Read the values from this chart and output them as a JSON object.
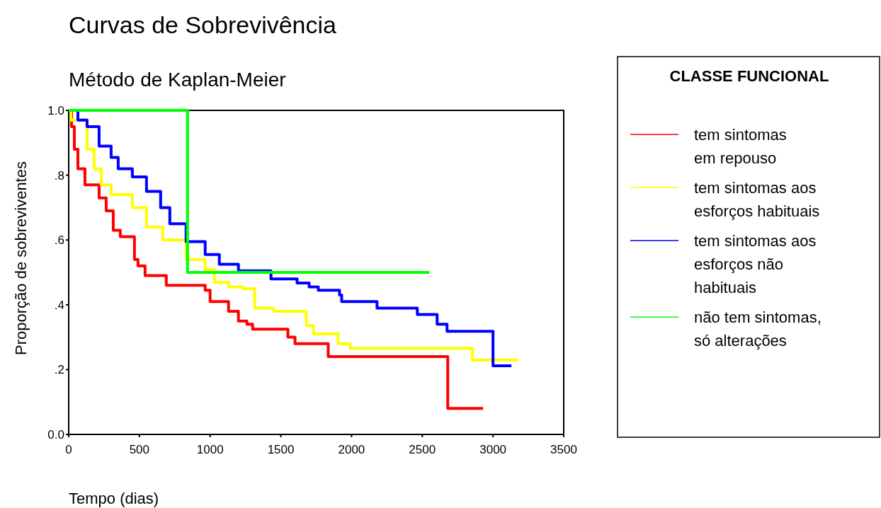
{
  "chart_data": {
    "type": "step",
    "title": "Curvas de Sobrevivência",
    "subtitle": "Método de Kaplan-Meier",
    "xlabel": "Tempo (dias)",
    "ylabel": "Proporção de sobreviventes",
    "legend_title": "CLASSE FUNCIONAL",
    "legend": "right",
    "xlim": [
      0,
      3500
    ],
    "xticks": [
      0,
      500,
      1000,
      1500,
      2000,
      2500,
      3000,
      3500
    ],
    "ylim": [
      0,
      1
    ],
    "yticks": [
      {
        "value": 0,
        "label": "0.0"
      },
      {
        "value": 0.2,
        "label": ".2"
      },
      {
        "value": 0.4,
        "label": ".4"
      },
      {
        "value": 0.6,
        "label": ".6"
      },
      {
        "value": 0.8,
        "label": ".8"
      },
      {
        "value": 1,
        "label": "1.0"
      }
    ],
    "grid": false,
    "line_style": "solid",
    "series": [
      {
        "name": "tem sintomas\nem repouso",
        "color": "#ff0000",
        "x": [
          0,
          20,
          40,
          65,
          115,
          215,
          265,
          315,
          365,
          465,
          490,
          540,
          690,
          965,
          1000,
          1130,
          1200,
          1260,
          1300,
          1550,
          1600,
          1835,
          2680,
          2930
        ],
        "values": [
          1,
          0.95,
          0.88,
          0.82,
          0.77,
          0.73,
          0.69,
          0.63,
          0.61,
          0.54,
          0.52,
          0.49,
          0.46,
          0.445,
          0.41,
          0.38,
          0.35,
          0.34,
          0.325,
          0.3,
          0.28,
          0.24,
          0.08,
          0.08
        ]
      },
      {
        "name": "tem sintomas aos\nesforços habituais",
        "color": "#ffff00",
        "x": [
          0,
          15,
          130,
          180,
          230,
          300,
          450,
          550,
          665,
          830,
          965,
          1030,
          1130,
          1230,
          1315,
          1450,
          1680,
          1730,
          1905,
          1990,
          2855,
          3180
        ],
        "values": [
          1,
          0.97,
          0.88,
          0.82,
          0.77,
          0.74,
          0.7,
          0.64,
          0.6,
          0.54,
          0.51,
          0.47,
          0.455,
          0.45,
          0.39,
          0.38,
          0.336,
          0.31,
          0.28,
          0.266,
          0.23,
          0.23
        ]
      },
      {
        "name": "tem sintomas aos\nesforços não\nhabituais",
        "color": "#0000ff",
        "x": [
          0,
          65,
          130,
          215,
          300,
          350,
          450,
          550,
          650,
          715,
          830,
          965,
          1065,
          1200,
          1430,
          1615,
          1700,
          1765,
          1915,
          1930,
          2180,
          2465,
          2605,
          2675,
          3000,
          3130
        ],
        "values": [
          1,
          0.97,
          0.95,
          0.89,
          0.855,
          0.82,
          0.795,
          0.75,
          0.7,
          0.65,
          0.595,
          0.555,
          0.525,
          0.505,
          0.48,
          0.467,
          0.455,
          0.445,
          0.43,
          0.41,
          0.39,
          0.37,
          0.34,
          0.318,
          0.212,
          0.212
        ]
      },
      {
        "name": "não tem sintomas,\nsó alterações",
        "color": "#00ff00",
        "x": [
          0,
          840,
          2550
        ],
        "values": [
          1,
          0.5,
          0.5
        ]
      }
    ]
  }
}
